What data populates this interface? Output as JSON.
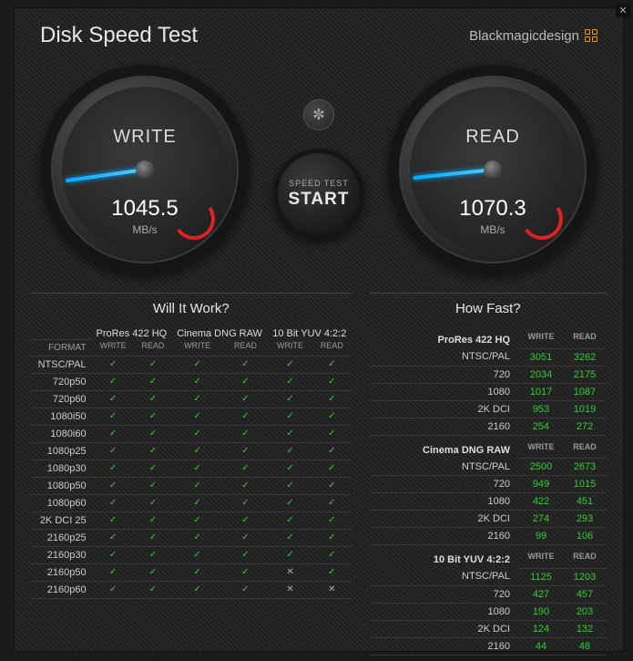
{
  "header": {
    "title": "Disk Speed Test",
    "brand": "Blackmagicdesign"
  },
  "gauges": {
    "write": {
      "label": "WRITE",
      "value": "1045.5",
      "unit": "MB/s"
    },
    "read": {
      "label": "READ",
      "value": "1070.3",
      "unit": "MB/s"
    }
  },
  "center": {
    "gear": "✼",
    "start_small": "SPEED TEST",
    "start_big": "START"
  },
  "will": {
    "title": "Will It Work?",
    "format_hdr": "FORMAT",
    "groups": [
      "ProRes 422 HQ",
      "Cinema DNG RAW",
      "10 Bit YUV 4:2:2"
    ],
    "sub": [
      "WRITE",
      "READ"
    ],
    "formats": [
      "NTSC/PAL",
      "720p50",
      "720p60",
      "1080i50",
      "1080i60",
      "1080p25",
      "1080p30",
      "1080p50",
      "1080p60",
      "2K DCI 25",
      "2160p25",
      "2160p30",
      "2160p50",
      "2160p60"
    ],
    "cells": [
      [
        1,
        1,
        1,
        1,
        1,
        1
      ],
      [
        1,
        1,
        1,
        1,
        1,
        1
      ],
      [
        1,
        1,
        1,
        1,
        1,
        1
      ],
      [
        1,
        1,
        1,
        1,
        1,
        1
      ],
      [
        1,
        1,
        1,
        1,
        1,
        1
      ],
      [
        1,
        1,
        1,
        1,
        1,
        1
      ],
      [
        1,
        1,
        1,
        1,
        1,
        1
      ],
      [
        1,
        1,
        1,
        1,
        1,
        1
      ],
      [
        1,
        1,
        1,
        1,
        1,
        1
      ],
      [
        1,
        1,
        1,
        1,
        1,
        1
      ],
      [
        1,
        1,
        1,
        1,
        1,
        1
      ],
      [
        1,
        1,
        1,
        1,
        1,
        1
      ],
      [
        1,
        1,
        1,
        1,
        0,
        1
      ],
      [
        1,
        1,
        1,
        1,
        0,
        0
      ]
    ]
  },
  "fast": {
    "title": "How Fast?",
    "sub": [
      "WRITE",
      "READ"
    ],
    "sections": [
      {
        "name": "ProRes 422 HQ",
        "rows": [
          [
            "NTSC/PAL",
            "3051",
            "3262"
          ],
          [
            "720",
            "2034",
            "2175"
          ],
          [
            "1080",
            "1017",
            "1087"
          ],
          [
            "2K DCI",
            "953",
            "1019"
          ],
          [
            "2160",
            "254",
            "272"
          ]
        ]
      },
      {
        "name": "Cinema DNG RAW",
        "rows": [
          [
            "NTSC/PAL",
            "2500",
            "2673"
          ],
          [
            "720",
            "949",
            "1015"
          ],
          [
            "1080",
            "422",
            "451"
          ],
          [
            "2K DCI",
            "274",
            "293"
          ],
          [
            "2160",
            "99",
            "106"
          ]
        ]
      },
      {
        "name": "10 Bit YUV 4:2:2",
        "rows": [
          [
            "NTSC/PAL",
            "1125",
            "1203"
          ],
          [
            "720",
            "427",
            "457"
          ],
          [
            "1080",
            "190",
            "203"
          ],
          [
            "2K DCI",
            "124",
            "132"
          ],
          [
            "2160",
            "44",
            "48"
          ]
        ]
      }
    ]
  },
  "colors": {
    "check": "#33cc33",
    "cross": "#aaaaaa",
    "value": "#33cc33",
    "accent": "#e89020"
  }
}
